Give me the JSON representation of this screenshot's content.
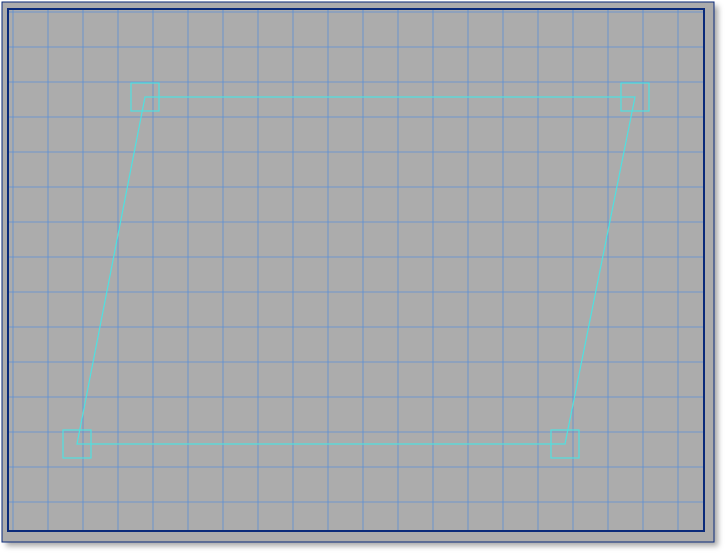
{
  "canvas": {
    "background_color": "#acacac",
    "frame_color": "#0a2a7a",
    "grid_color": "#5b8fd6",
    "shape_color": "#4fe0e0",
    "grid_visible": true,
    "shape": {
      "type": "quadrilateral",
      "handle_icon": "square-handle-icon",
      "corners": [
        "top-left",
        "top-right",
        "bottom-right",
        "bottom-left"
      ]
    }
  }
}
